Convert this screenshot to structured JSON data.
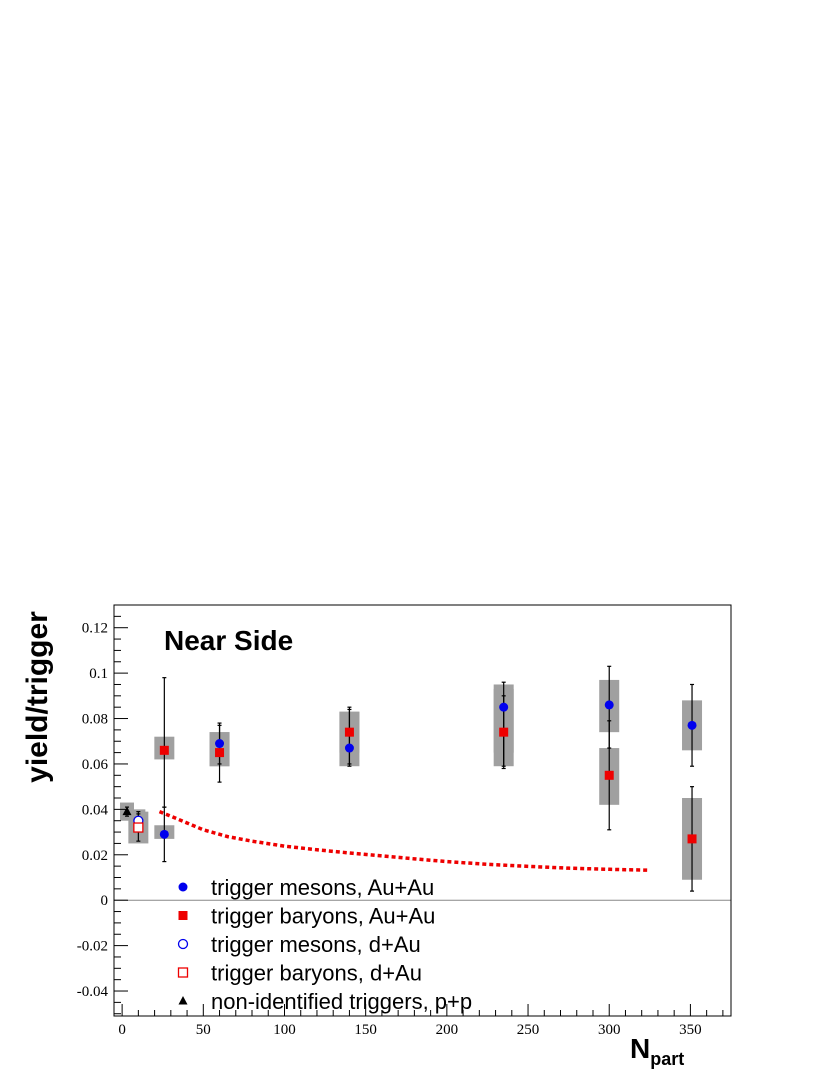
{
  "chart_data": {
    "type": "scatter",
    "title": "",
    "annotation": "Near Side",
    "xlabel": "N",
    "xlabel_sub": "part",
    "ylabel": "yield/trigger",
    "xlim": [
      -5,
      375
    ],
    "ylim": [
      -0.051,
      0.13
    ],
    "xticks": [
      0,
      50,
      100,
      150,
      200,
      250,
      300,
      350
    ],
    "xtick_labels": [
      "0",
      "50",
      "100",
      "150",
      "200",
      "250",
      "300",
      "350"
    ],
    "yticks": [
      -0.04,
      -0.02,
      0,
      0.02,
      0.04,
      0.06,
      0.08,
      0.1,
      0.12
    ],
    "ytick_labels": [
      "-0.04",
      "-0.02",
      "0",
      "0.02",
      "0.04",
      "0.06",
      "0.08",
      "0.1",
      "0.12"
    ],
    "zero_line": true,
    "grid": false,
    "legend_position": "bottom-left",
    "colors": {
      "blue": "#0000ee",
      "red": "#ee0000",
      "gray_band": "#a0a0a0",
      "black": "#000000"
    },
    "series": [
      {
        "name": "trigger mesons, Au+Au",
        "marker": "filled-circle",
        "color": "#0000ee",
        "points": [
          {
            "x": 26,
            "y": 0.029,
            "err": [
              0.017,
              0.041
            ],
            "sys": [
              0.027,
              0.033
            ]
          },
          {
            "x": 60,
            "y": 0.069,
            "err": [
              0.06,
              0.078
            ],
            "sys": [
              0.059,
              0.074
            ]
          },
          {
            "x": 140,
            "y": 0.067,
            "err": [
              0.059,
              0.084
            ],
            "sys": [
              0.059,
              0.083
            ]
          },
          {
            "x": 235,
            "y": 0.085,
            "err": [
              0.058,
              0.096
            ],
            "sys": [
              0.059,
              0.095
            ]
          },
          {
            "x": 300,
            "y": 0.086,
            "err": [
              0.067,
              0.103
            ],
            "sys": [
              0.074,
              0.097
            ]
          },
          {
            "x": 351,
            "y": 0.077,
            "err": [
              0.059,
              0.095
            ],
            "sys": [
              0.066,
              0.088
            ]
          }
        ]
      },
      {
        "name": "trigger baryons, Au+Au",
        "marker": "filled-square",
        "color": "#ee0000",
        "points": [
          {
            "x": 26,
            "y": 0.066,
            "err": [
              0.041,
              0.098
            ],
            "sys": [
              0.062,
              0.072
            ]
          },
          {
            "x": 60,
            "y": 0.065,
            "err": [
              0.052,
              0.077
            ],
            "sys": [
              0.059,
              0.074
            ]
          },
          {
            "x": 140,
            "y": 0.074,
            "err": [
              0.06,
              0.085
            ],
            "sys": [
              0.065,
              0.083
            ]
          },
          {
            "x": 235,
            "y": 0.074,
            "err": [
              0.059,
              0.09
            ],
            "sys": [
              0.065,
              0.093
            ]
          },
          {
            "x": 300,
            "y": 0.055,
            "err": [
              0.031,
              0.079
            ],
            "sys": [
              0.042,
              0.067
            ]
          },
          {
            "x": 351,
            "y": 0.027,
            "err": [
              0.004,
              0.05
            ],
            "sys": [
              0.009,
              0.045
            ]
          }
        ]
      },
      {
        "name": "trigger mesons, d+Au",
        "marker": "open-circle",
        "color": "#0000ee",
        "points": [
          {
            "x": 10,
            "y": 0.035,
            "err": [
              0.031,
              0.039
            ],
            "sys": [
              0.026,
              0.04
            ]
          }
        ]
      },
      {
        "name": "trigger baryons, d+Au",
        "marker": "open-square",
        "color": "#ee0000",
        "points": [
          {
            "x": 10,
            "y": 0.032,
            "err": [
              0.026,
              0.038
            ],
            "sys": [
              0.025,
              0.039
            ]
          }
        ]
      },
      {
        "name": "non-identified triggers, p+p",
        "marker": "filled-triangle",
        "color": "#000000",
        "points": [
          {
            "x": 3,
            "y": 0.039,
            "err": [
              0.037,
              0.041
            ],
            "sys": [
              0.035,
              0.043
            ]
          }
        ]
      }
    ],
    "curves": [
      {
        "style": "dotted",
        "color": "#ee0000",
        "x": [
          23,
          30,
          40,
          50,
          65,
          80,
          100,
          120,
          140,
          160,
          180,
          200,
          225,
          250,
          275,
          300,
          325
        ],
        "y": [
          0.039,
          0.037,
          0.034,
          0.031,
          0.028,
          0.026,
          0.0238,
          0.0222,
          0.0208,
          0.0195,
          0.0182,
          0.017,
          0.0158,
          0.0149,
          0.0141,
          0.0136,
          0.0132
        ]
      }
    ]
  }
}
